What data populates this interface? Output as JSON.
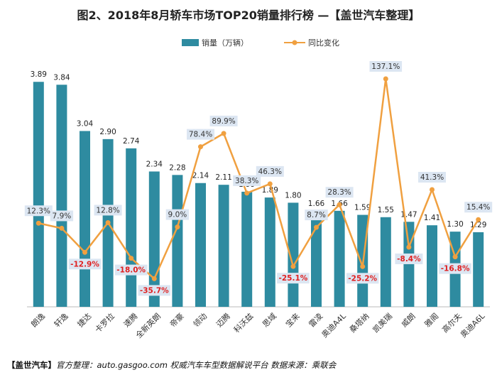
{
  "title": "图2、2018年8月轿车市场TOP20销量排行榜 —【盖世汽车整理】",
  "footer": {
    "brand": "【盖世汽车】",
    "text": "官方整理：auto.gasgoo.com 权威汽车车型数据解说平台 数据来源：乘联会"
  },
  "colors": {
    "bar": "#2E8BA0",
    "line": "#F0A040",
    "negative": "#E02020",
    "positive": "#333333",
    "label_bg": "#DCE6F2"
  },
  "chart_data": {
    "type": "bar",
    "title": "图2、2018年8月轿车市场TOP20销量排行榜 —【盖世汽车整理】",
    "categories": [
      "朗逸",
      "轩逸",
      "捷达",
      "卡罗拉",
      "速腾",
      "全新英朗",
      "帝豪",
      "领动",
      "迈腾",
      "科沃兹",
      "思域",
      "宝来",
      "雷凌",
      "奥迪A4L",
      "桑塔纳",
      "凯美瑞",
      "威朗",
      "雅阁",
      "高尔夫",
      "奥迪A6L"
    ],
    "series": [
      {
        "name": "销量（万辆）",
        "type": "bar",
        "axis": "left",
        "values": [
          3.89,
          3.84,
          3.04,
          2.9,
          2.74,
          2.34,
          2.28,
          2.14,
          2.11,
          1.99,
          1.89,
          1.8,
          1.66,
          1.66,
          1.59,
          1.55,
          1.47,
          1.41,
          1.3,
          1.29
        ],
        "labels": [
          "3.89",
          "3.84",
          "3.04",
          "2.90",
          "2.74",
          "2.34",
          "2.28",
          "2.14",
          "2.11",
          "1.99",
          "1.89",
          "1.80",
          "1.66",
          "1.66",
          "1.59",
          "1.55",
          "1.47",
          "1.41",
          "1.30",
          "1.29"
        ]
      },
      {
        "name": "同比变化",
        "type": "line",
        "axis": "right",
        "values": [
          12.3,
          7.9,
          -12.9,
          12.8,
          -18.0,
          -35.7,
          9.0,
          78.4,
          89.9,
          38.3,
          46.3,
          -25.1,
          8.7,
          28.3,
          -25.2,
          137.1,
          -8.4,
          41.3,
          -16.8,
          15.4
        ],
        "labels": [
          "12.3%",
          "7.9%",
          "-12.9%",
          "12.8%",
          "-18.0%",
          "-35.7%",
          "9.0%",
          "78.4%",
          "89.9%",
          "38.3%",
          "46.3%",
          "-25.1%",
          "8.7%",
          "28.3%",
          "-25.2%",
          "137.1%",
          "-8.4%",
          "41.3%",
          "-16.8%",
          "15.4%"
        ]
      }
    ],
    "ylim": [
      0,
      4.2
    ],
    "y2lim": [
      -60,
      150
    ],
    "legend": "top-center"
  }
}
